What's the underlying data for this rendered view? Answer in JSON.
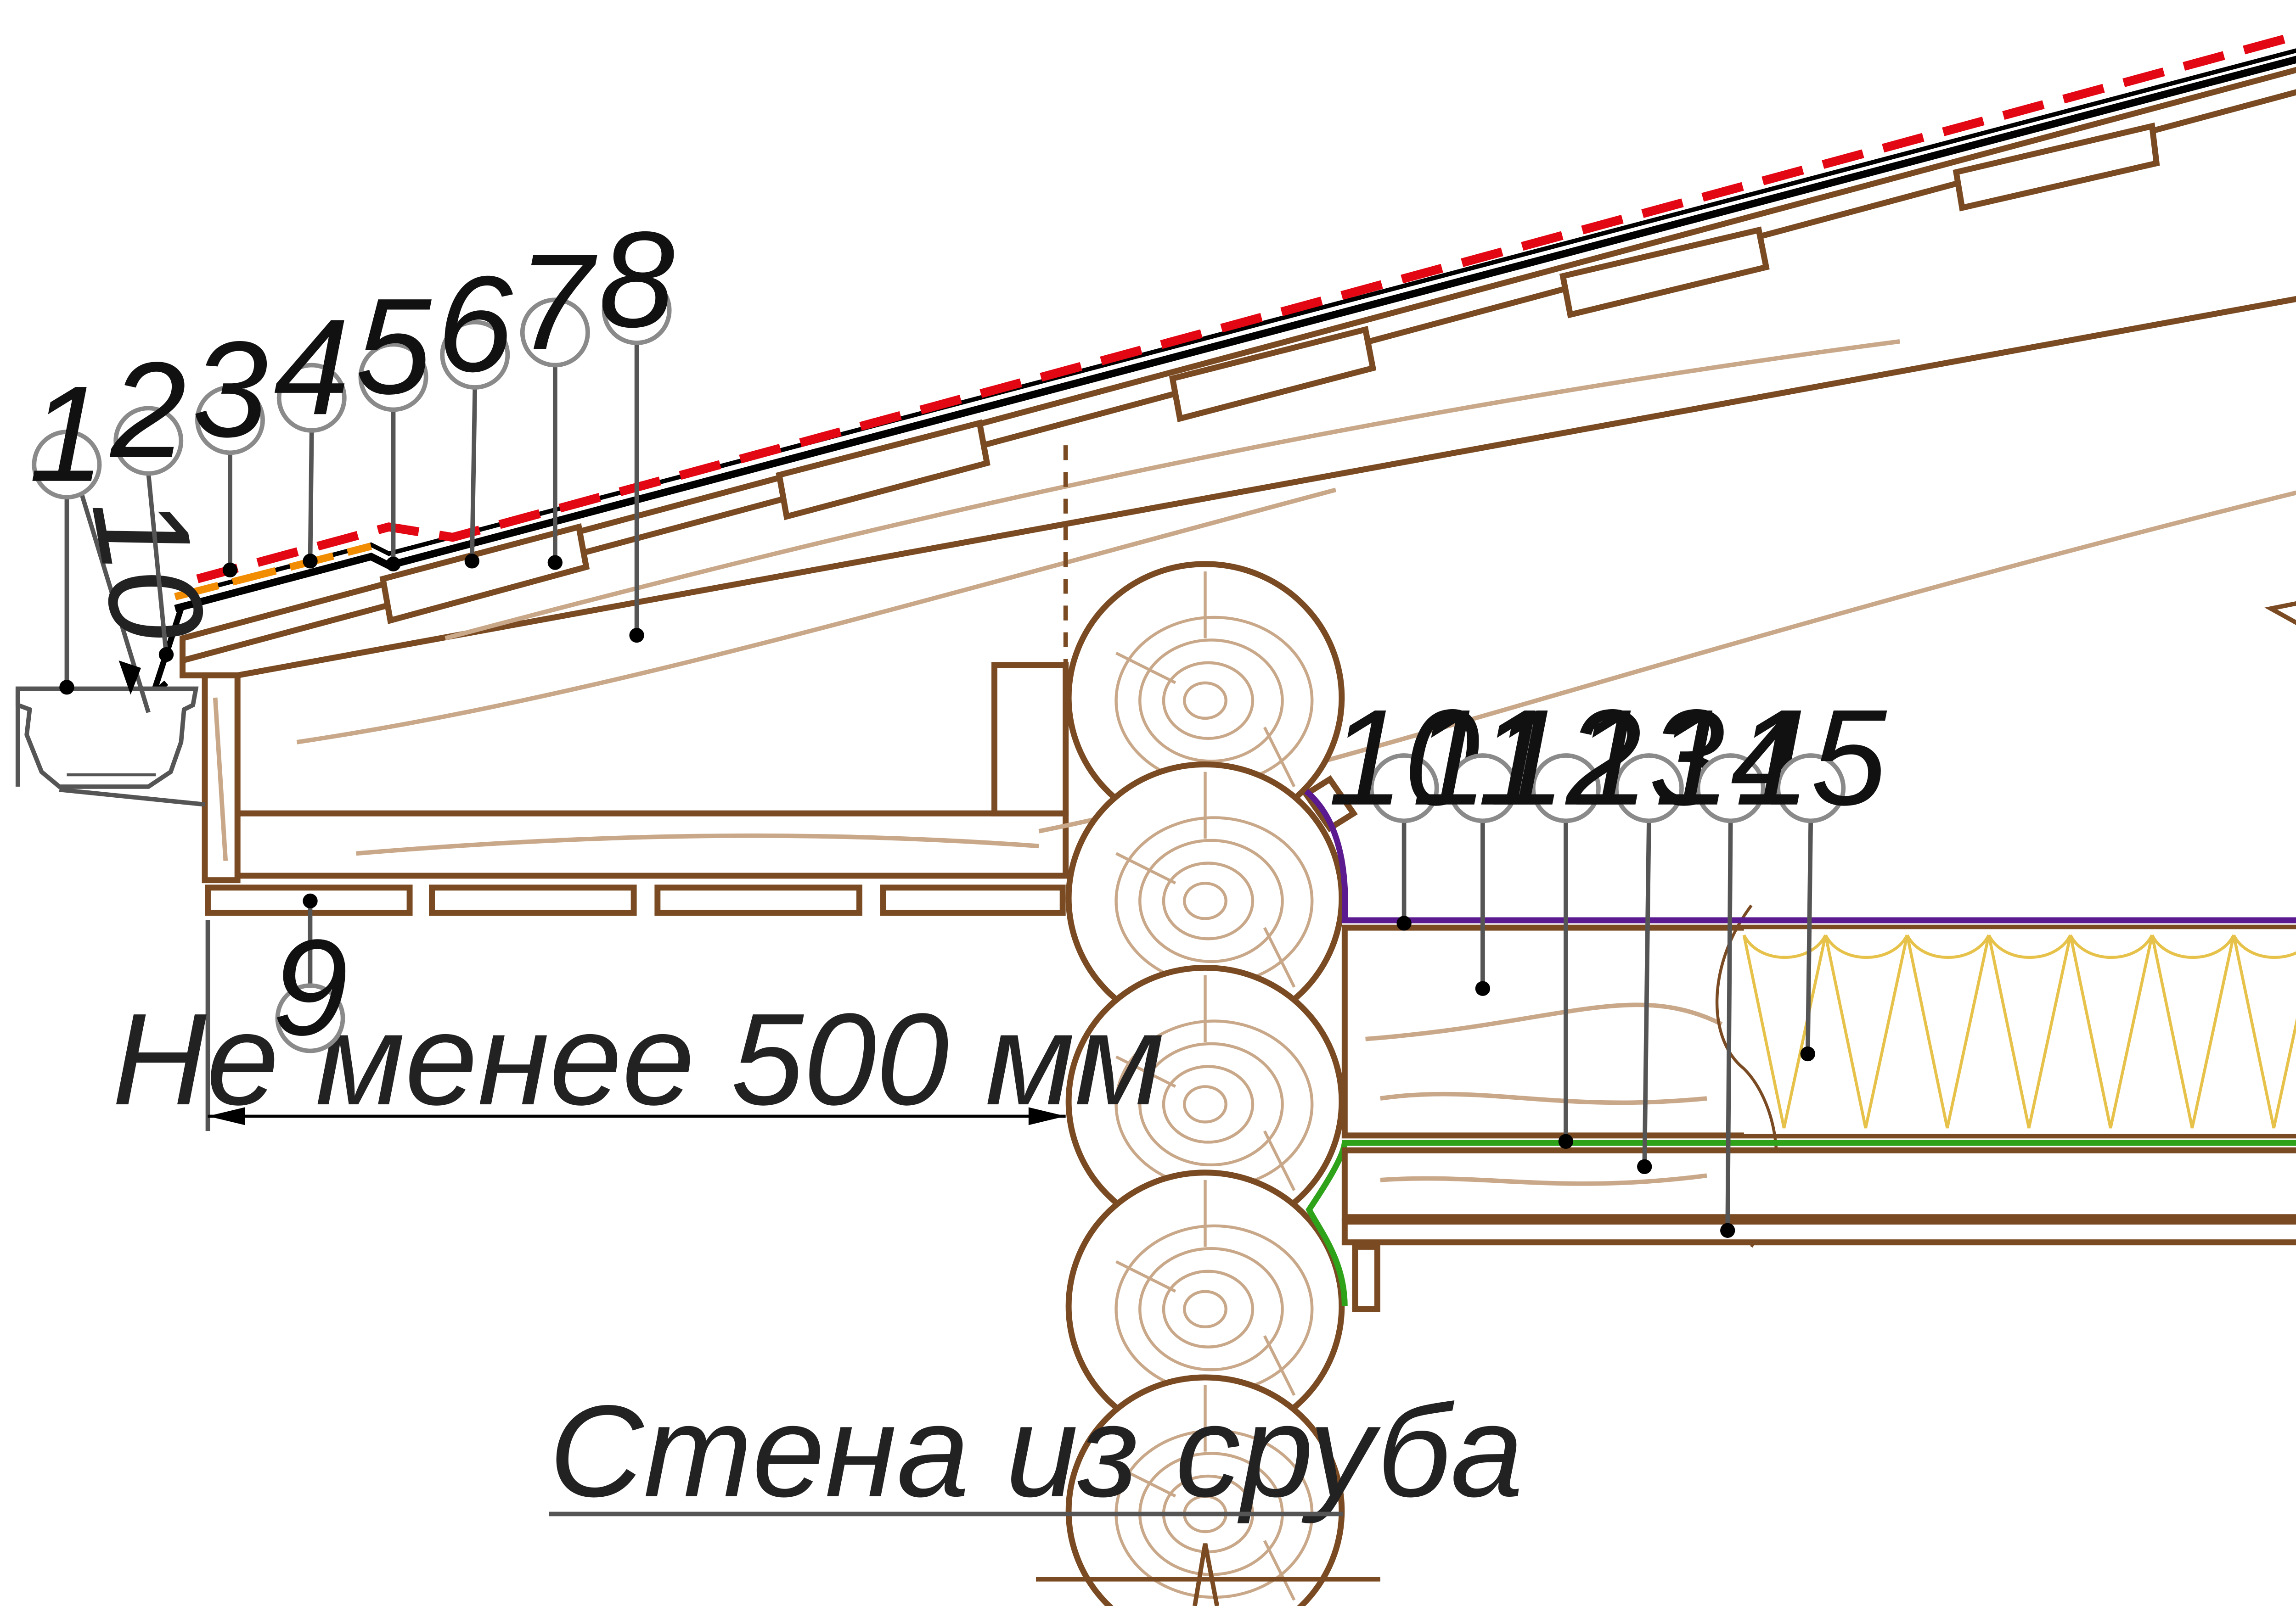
{
  "callouts": [
    {
      "n": "1"
    },
    {
      "n": "2"
    },
    {
      "n": "3"
    },
    {
      "n": "4"
    },
    {
      "n": "5"
    },
    {
      "n": "6"
    },
    {
      "n": "7"
    },
    {
      "n": "8"
    },
    {
      "n": "9"
    },
    {
      "n": "10"
    },
    {
      "n": "11"
    },
    {
      "n": "12"
    },
    {
      "n": "13"
    },
    {
      "n": "14"
    },
    {
      "n": "15"
    }
  ],
  "dimension_small": "10",
  "dimension_label": "Не менее 500 мм",
  "wall_label": "Стена из сруба",
  "colors": {
    "wood_line": "#7a4a22",
    "grain": "#c9a88a",
    "roofing_red": "#e30613",
    "underlay_orange": "#f28c00",
    "membrane_black": "#000000",
    "vapor_purple": "#5b1a8f",
    "membrane_green": "#2ea31a",
    "insulation": "#e7c24a"
  }
}
